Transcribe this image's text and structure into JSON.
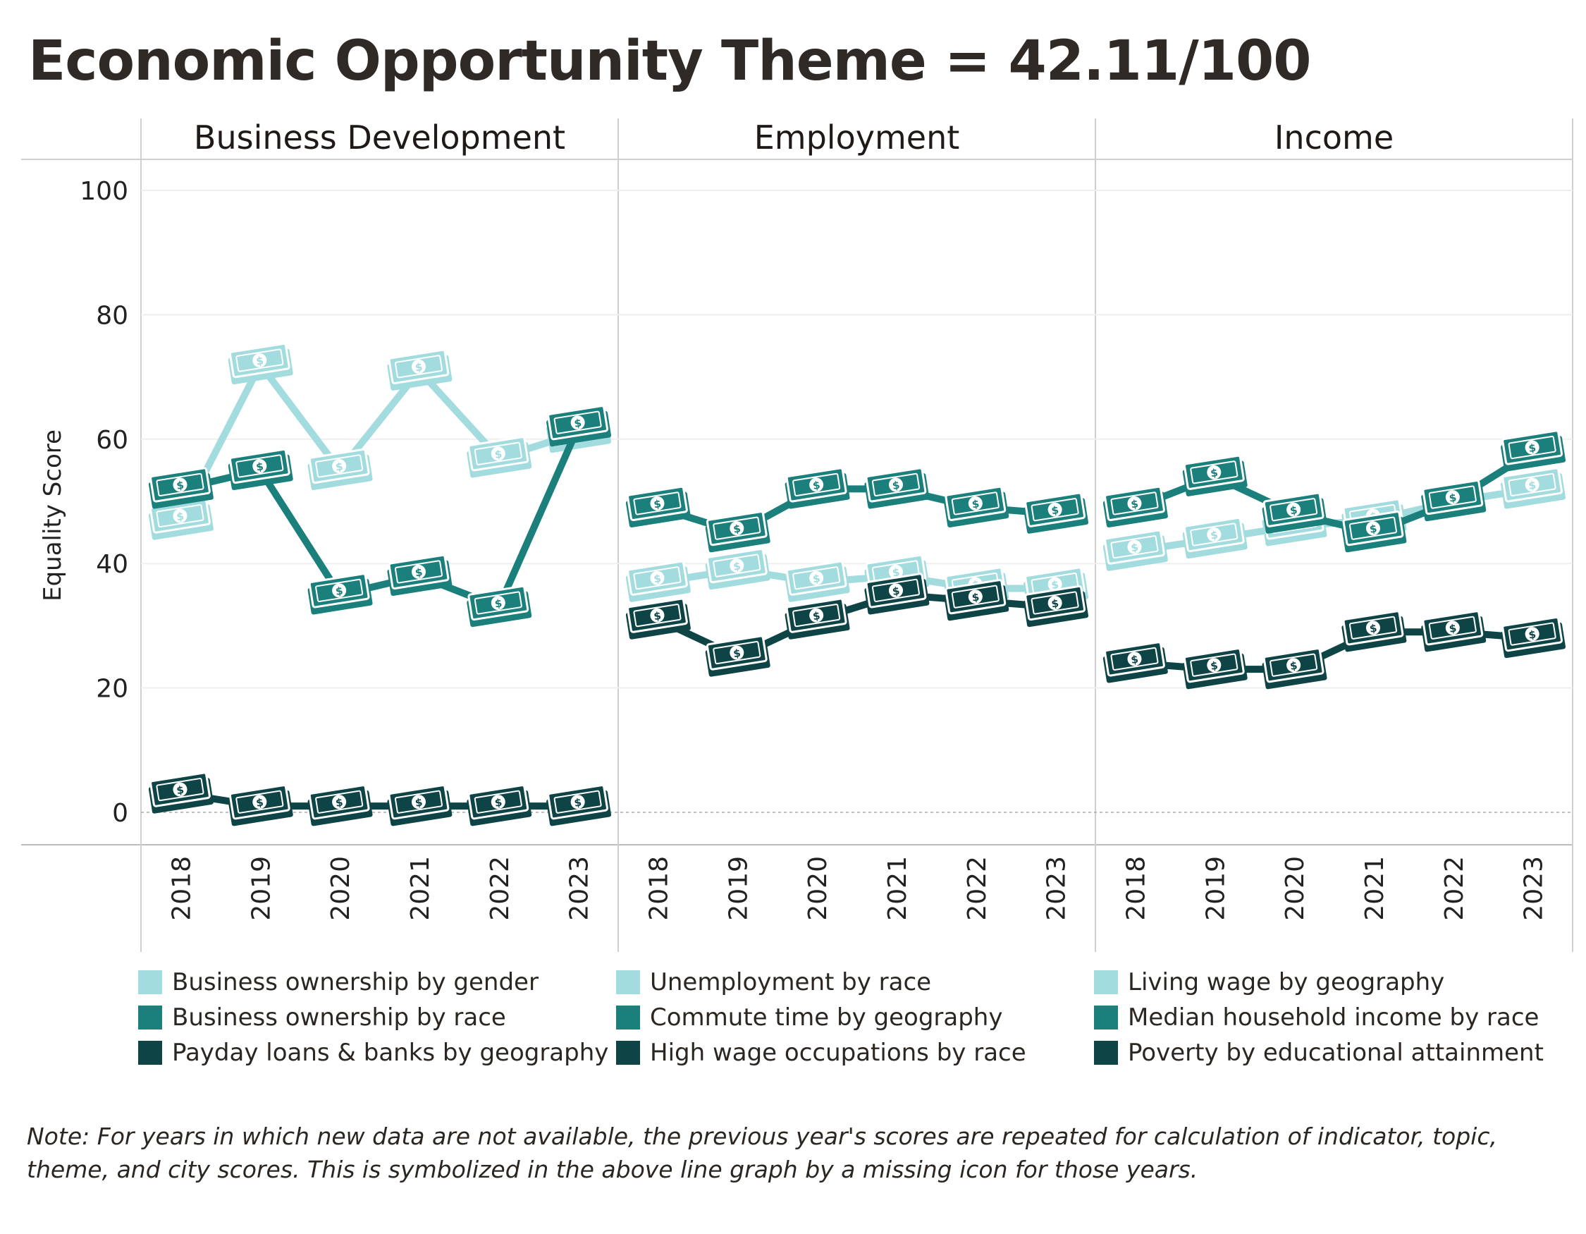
{
  "title": "Economic Opportunity Theme = 42.11/100",
  "note": "Note: For years in which new data are not available, the previous year's scores are repeated for calculation of indicator, topic, theme, and city scores. This is symbolized in the above line graph by a missing icon for those years.",
  "colors": {
    "light": "#a3dcdf",
    "mid": "#1b807c",
    "dark": "#0f4446"
  },
  "chart_data": {
    "type": "line",
    "ylabel": "Equality Score",
    "ylim": [
      0,
      100
    ],
    "yticks": [
      0,
      20,
      40,
      60,
      80,
      100
    ],
    "x": [
      "2018",
      "2019",
      "2020",
      "2021",
      "2022",
      "2023"
    ],
    "panels": [
      {
        "title": "Business Development",
        "series": [
          {
            "name": "Business ownership by gender",
            "shade": "light",
            "values": [
              47,
              72,
              55,
              71,
              57,
              61
            ]
          },
          {
            "name": "Business ownership by race",
            "shade": "mid",
            "values": [
              52,
              55,
              35,
              38,
              33,
              62
            ]
          },
          {
            "name": "Payday loans & banks by geography",
            "shade": "dark",
            "values": [
              3,
              1,
              1,
              1,
              1,
              1
            ]
          }
        ]
      },
      {
        "title": "Employment",
        "series": [
          {
            "name": "Unemployment by race",
            "shade": "light",
            "values": [
              37,
              39,
              37,
              38,
              36,
              36
            ]
          },
          {
            "name": "Commute time by geography",
            "shade": "mid",
            "values": [
              49,
              45,
              52,
              52,
              49,
              48
            ]
          },
          {
            "name": "High wage occupations by race",
            "shade": "dark",
            "values": [
              31,
              25,
              31,
              35,
              34,
              33
            ]
          }
        ]
      },
      {
        "title": "Income",
        "series": [
          {
            "name": "Living wage by geography",
            "shade": "light",
            "values": [
              42,
              44,
              46,
              47,
              50,
              52
            ]
          },
          {
            "name": "Median household income by race",
            "shade": "mid",
            "values": [
              49,
              54,
              48,
              45,
              50,
              58
            ]
          },
          {
            "name": "Poverty by educational attainment",
            "shade": "dark",
            "values": [
              24,
              23,
              23,
              29,
              29,
              28
            ]
          }
        ]
      }
    ]
  }
}
